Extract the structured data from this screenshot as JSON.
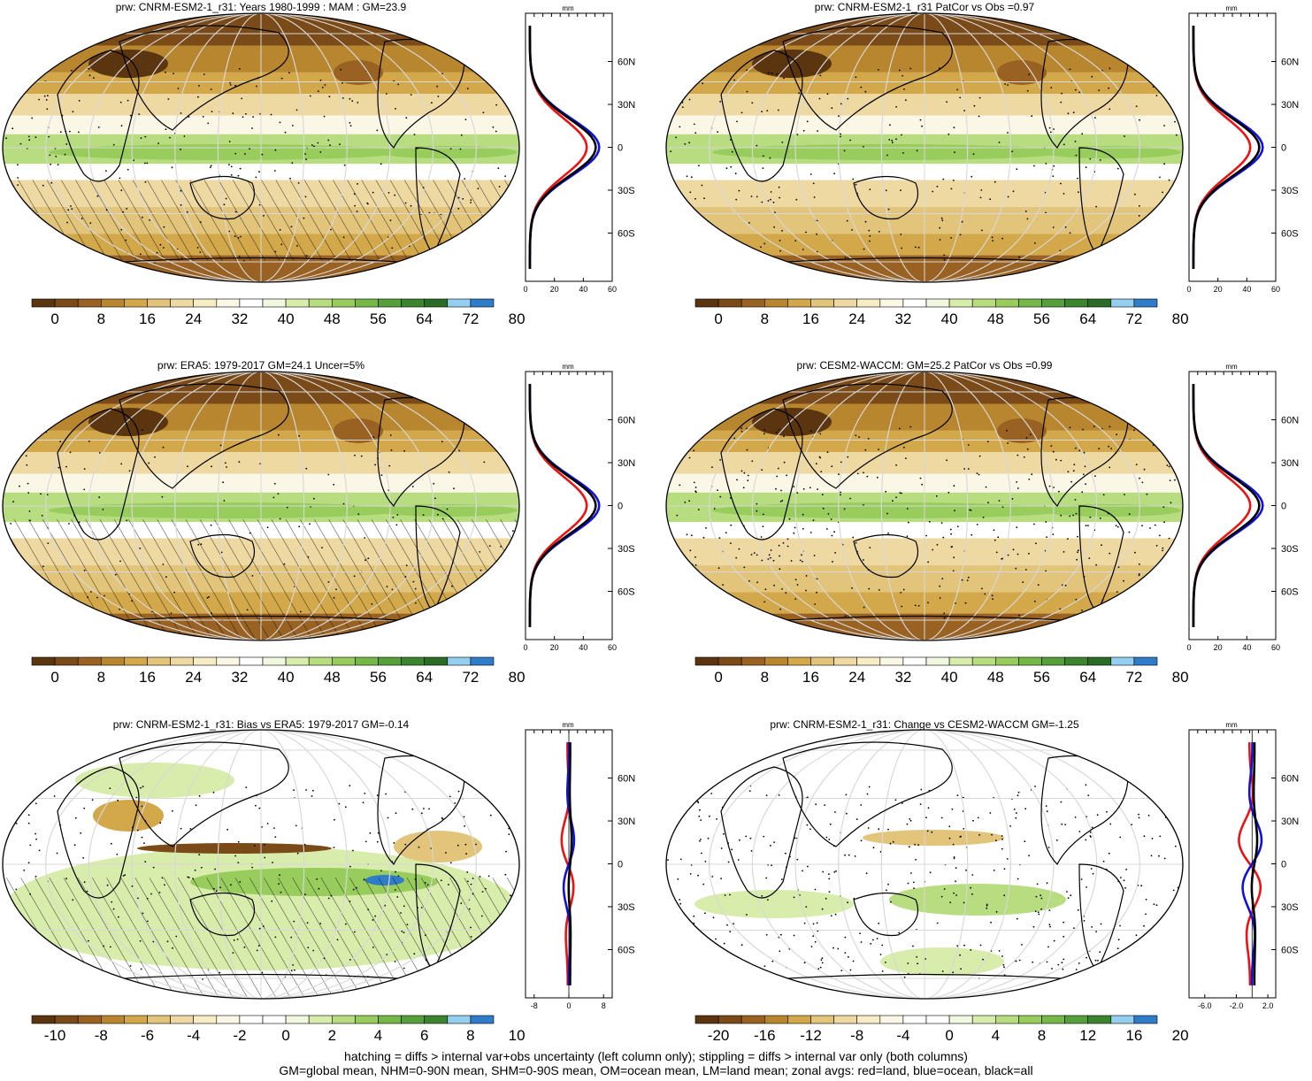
{
  "figure": {
    "footer_lines": [
      "hatching = diffs > internal var+obs uncertainty (left column only); stippling = diffs > internal var only (both columns)",
      "GM=global mean, NHM=0-90N mean, SHM=0-90S mean, OM=ocean mean, LM=land mean; zonal avgs: red=land, blue=ocean, black=all"
    ]
  },
  "colors": {
    "abs_palette": [
      "#5a3510",
      "#7a4a18",
      "#9a6222",
      "#b8862e",
      "#d2a84a",
      "#e2c47a",
      "#eed9a2",
      "#f6ecc6",
      "#fbf7e6",
      "#ffffff",
      "#f1f8df",
      "#d8ecab",
      "#b8dd80",
      "#98cc5c",
      "#76b848",
      "#569f3a",
      "#3c852e",
      "#2a6b26",
      "#95cff0",
      "#2f7cc8"
    ],
    "zonal_land": "#ee1111",
    "zonal_ocean": "#1111dd",
    "zonal_all": "#000000"
  },
  "panels": [
    {
      "title": "prw: CNRM-ESM2-1_r31: Years 1980-1999 : MAM : GM=23.9",
      "kind": "abs",
      "hatch": "sparse",
      "stipple": "moderate",
      "colorbar_labels": [
        "0",
        "8",
        "16",
        "24",
        "32",
        "40",
        "48",
        "56",
        "64",
        "72",
        "80"
      ],
      "zonal": {
        "unit": "mm",
        "xticks": [
          "0",
          "20",
          "40",
          "60"
        ],
        "xlim": [
          0,
          60
        ],
        "bias": false,
        "lat_labels": [
          "60N",
          "30N",
          "0",
          "30S",
          "60S"
        ]
      }
    },
    {
      "title": "prw: CNRM-ESM2-1_r31 PatCor vs Obs =0.97",
      "kind": "abs",
      "hatch": "none",
      "stipple": "moderate",
      "colorbar_labels": [
        "0",
        "8",
        "16",
        "24",
        "32",
        "40",
        "48",
        "56",
        "64",
        "72",
        "80"
      ],
      "zonal": {
        "unit": "mm",
        "xticks": [
          "0",
          "20",
          "40",
          "60"
        ],
        "xlim": [
          0,
          60
        ],
        "bias": false,
        "lat_labels": [
          "60N",
          "30N",
          "0",
          "30S",
          "60S"
        ]
      }
    },
    {
      "title": "prw: ERA5: 1979-2017 GM=24.1 Uncer=5%",
      "kind": "abs",
      "hatch": "heavy",
      "stipple": "light",
      "colorbar_labels": [
        "0",
        "8",
        "16",
        "24",
        "32",
        "40",
        "48",
        "56",
        "64",
        "72",
        "80"
      ],
      "zonal": {
        "unit": "mm",
        "xticks": [
          "0",
          "20",
          "40",
          "60"
        ],
        "xlim": [
          0,
          60
        ],
        "bias": false,
        "lat_labels": [
          "60N",
          "30N",
          "0",
          "30S",
          "60S"
        ]
      }
    },
    {
      "title": "prw: CESM2-WACCM: GM=25.2 PatCor vs Obs =0.99",
      "kind": "abs",
      "hatch": "none",
      "stipple": "heavy",
      "colorbar_labels": [
        "0",
        "8",
        "16",
        "24",
        "32",
        "40",
        "48",
        "56",
        "64",
        "72",
        "80"
      ],
      "zonal": {
        "unit": "mm",
        "xticks": [
          "0",
          "20",
          "40",
          "60"
        ],
        "xlim": [
          0,
          60
        ],
        "bias": false,
        "lat_labels": [
          "60N",
          "30N",
          "0",
          "30S",
          "60S"
        ]
      }
    },
    {
      "title": "prw: CNRM-ESM2-1_r31: Bias vs ERA5: 1979-2017 GM=-0.14",
      "kind": "bias",
      "hatch": "heavy",
      "stipple": "moderate",
      "colorbar_labels": [
        "-10",
        "-8",
        "-6",
        "-4",
        "-2",
        "0",
        "2",
        "4",
        "6",
        "8",
        "10"
      ],
      "zonal": {
        "unit": "mm",
        "xticks": [
          "-8",
          "0",
          "8"
        ],
        "xlim": [
          -10,
          10
        ],
        "bias": true,
        "lat_labels": [
          "60N",
          "30N",
          "0",
          "30S",
          "60S"
        ]
      }
    },
    {
      "title": "prw: CNRM-ESM2-1_r31: Change vs CESM2-WACCM GM=-1.25",
      "kind": "change",
      "hatch": "none",
      "stipple": "heavy",
      "colorbar_labels": [
        "-20",
        "-16",
        "-12",
        "-8",
        "-4",
        "0",
        "4",
        "8",
        "12",
        "16",
        "20"
      ],
      "zonal": {
        "unit": "mm",
        "xticks": [
          "-6.0",
          "-2.0",
          "2.0"
        ],
        "xlim": [
          -8,
          3
        ],
        "bias": true,
        "lat_labels": [
          "60N",
          "30N",
          "0",
          "30S",
          "60S"
        ]
      }
    }
  ]
}
